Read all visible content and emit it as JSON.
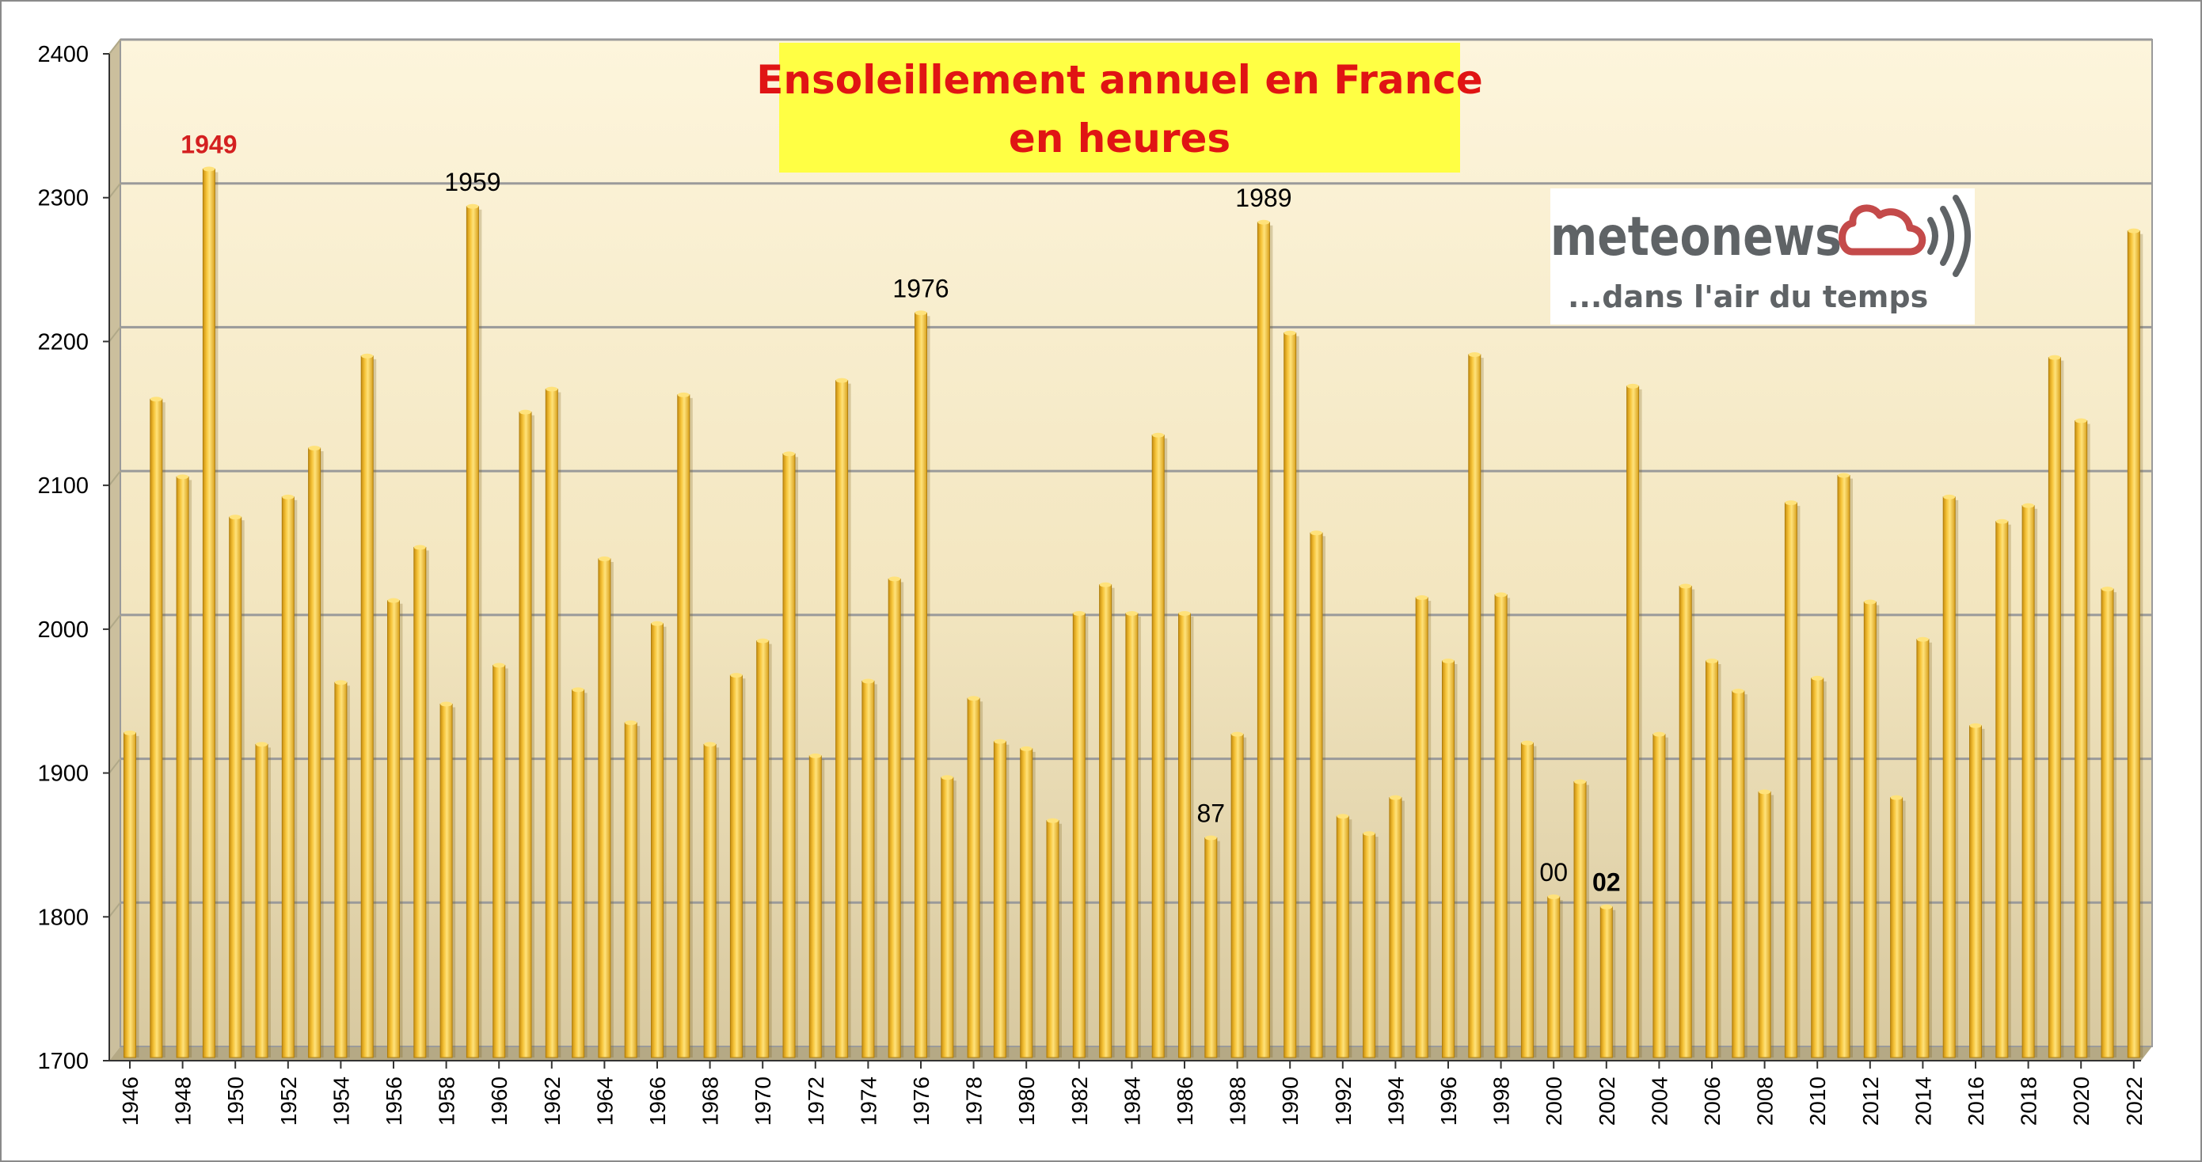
{
  "chart_data": {
    "type": "bar",
    "title": "Ensoleillement annuel en France",
    "subtitle": "en heures",
    "xlabel": "",
    "ylabel": "",
    "ylim": [
      1700,
      2400
    ],
    "yticks": [
      1700,
      1800,
      1900,
      2000,
      2100,
      2200,
      2300,
      2400
    ],
    "grid": true,
    "categories": [
      "1946",
      "1947",
      "1948",
      "1949",
      "1950",
      "1951",
      "1952",
      "1953",
      "1954",
      "1955",
      "1956",
      "1957",
      "1958",
      "1959",
      "1960",
      "1961",
      "1962",
      "1963",
      "1964",
      "1965",
      "1966",
      "1967",
      "1968",
      "1969",
      "1970",
      "1971",
      "1972",
      "1973",
      "1974",
      "1975",
      "1976",
      "1977",
      "1978",
      "1979",
      "1980",
      "1981",
      "1982",
      "1983",
      "1984",
      "1985",
      "1986",
      "1987",
      "1988",
      "1989",
      "1990",
      "1991",
      "1992",
      "1993",
      "1994",
      "1995",
      "1996",
      "1997",
      "1998",
      "1999",
      "2000",
      "2001",
      "2002",
      "2003",
      "2004",
      "2005",
      "2006",
      "2007",
      "2008",
      "2009",
      "2010",
      "2011",
      "2012",
      "2013",
      "2014",
      "2015",
      "2016",
      "2017",
      "2018",
      "2019",
      "2020",
      "2021",
      "2022"
    ],
    "xtick_labels": [
      "1946",
      "1948",
      "1950",
      "1952",
      "1954",
      "1956",
      "1958",
      "1960",
      "1962",
      "1964",
      "1966",
      "1968",
      "1970",
      "1972",
      "1974",
      "1976",
      "1978",
      "1980",
      "1982",
      "1984",
      "1986",
      "1988",
      "1990",
      "1992",
      "1994",
      "1996",
      "1998",
      "2000",
      "2002",
      "2004",
      "2006",
      "2008",
      "2010",
      "2012",
      "2014",
      "2016",
      "2018",
      "2020",
      "2022"
    ],
    "values": [
      1918,
      2150,
      2096,
      2310,
      2068,
      1910,
      2082,
      2116,
      1953,
      2180,
      2010,
      2047,
      1938,
      2284,
      1965,
      2141,
      2157,
      1948,
      2039,
      1925,
      1994,
      2153,
      1910,
      1958,
      1982,
      2112,
      1902,
      2163,
      1954,
      2025,
      2210,
      1887,
      1942,
      1912,
      1907,
      1857,
      2001,
      2021,
      2001,
      2125,
      2001,
      1845,
      1917,
      2273,
      2196,
      2057,
      1860,
      1848,
      1873,
      2012,
      1968,
      2181,
      2014,
      1911,
      1804,
      1884,
      1797,
      2159,
      1917,
      2020,
      1968,
      1947,
      1877,
      2078,
      1956,
      2097,
      2009,
      1873,
      1983,
      2082,
      1923,
      2065,
      2076,
      2179,
      2135,
      2018,
      2267
    ]
  },
  "annotations": [
    {
      "label": "1949",
      "year": "1949",
      "color": "#d42020",
      "bold": true
    },
    {
      "label": "1959",
      "year": "1959",
      "color": "#000000",
      "bold": false
    },
    {
      "label": "1976",
      "year": "1976",
      "color": "#000000",
      "bold": false
    },
    {
      "label": "87",
      "year": "1987",
      "color": "#000000",
      "bold": false
    },
    {
      "label": "1989",
      "year": "1989",
      "color": "#000000",
      "bold": false
    },
    {
      "label": "00",
      "year": "2000",
      "color": "#000000",
      "bold": false
    },
    {
      "label": "02",
      "year": "2002",
      "color": "#000000",
      "bold": true
    }
  ],
  "logo": {
    "brand": "meteonews",
    "tagline": "...dans l'air du temps",
    "icon": "cloud-waves-icon"
  },
  "colors": {
    "bar": "#f0b92a",
    "bar_dark": "#c98f10",
    "bar_light": "#ffe27a",
    "title_box": "#ffff44",
    "title_text": "#e01414",
    "plot_bg_top": "#fdf4d8",
    "plot_bg_bottom": "#d9cba3",
    "grid": "#9a9a9a",
    "logo_text": "#5f6366",
    "logo_icon": "#c44a4a"
  }
}
